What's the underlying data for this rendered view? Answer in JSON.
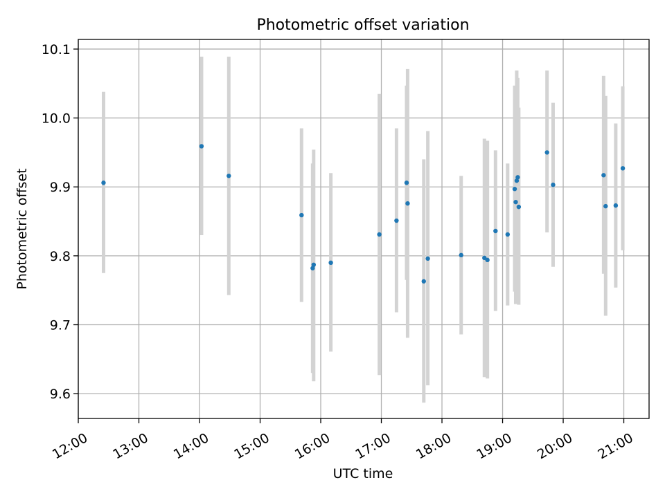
{
  "chart_data": {
    "type": "scatter",
    "title": "Photometric offset variation",
    "xlabel": "UTC time",
    "ylabel": "Photometric offset",
    "x_axis": "time",
    "xlim": [
      "12:00",
      "21:25"
    ],
    "ylim": [
      9.564,
      10.114
    ],
    "xticks": [
      "12:00",
      "13:00",
      "14:00",
      "15:00",
      "16:00",
      "17:00",
      "18:00",
      "19:00",
      "20:00",
      "21:00"
    ],
    "yticks": [
      9.6,
      9.7,
      9.8,
      9.9,
      10.0,
      10.1
    ],
    "ytick_labels": [
      "9.6",
      "9.7",
      "9.8",
      "9.9",
      "10.0",
      "10.1"
    ],
    "grid": true,
    "marker_color": "#1f77b4",
    "errorbar_color": "#d3d3d3",
    "points": [
      {
        "x": "12:25",
        "y": 9.906,
        "lo": 9.775,
        "hi": 10.038
      },
      {
        "x": "14:02",
        "y": 9.959,
        "lo": 9.83,
        "hi": 10.089
      },
      {
        "x": "14:29",
        "y": 9.916,
        "lo": 9.743,
        "hi": 10.089
      },
      {
        "x": "15:41",
        "y": 9.859,
        "lo": 9.733,
        "hi": 9.985
      },
      {
        "x": "15:52",
        "y": 9.782,
        "lo": 9.63,
        "hi": 9.934
      },
      {
        "x": "15:53",
        "y": 9.787,
        "lo": 9.618,
        "hi": 9.954
      },
      {
        "x": "16:10",
        "y": 9.79,
        "lo": 9.661,
        "hi": 9.92
      },
      {
        "x": "16:58",
        "y": 9.831,
        "lo": 9.627,
        "hi": 10.035
      },
      {
        "x": "17:15",
        "y": 9.851,
        "lo": 9.718,
        "hi": 9.985
      },
      {
        "x": "17:25",
        "y": 9.906,
        "lo": 9.765,
        "hi": 10.047
      },
      {
        "x": "17:26",
        "y": 9.876,
        "lo": 9.681,
        "hi": 10.071
      },
      {
        "x": "17:42",
        "y": 9.763,
        "lo": 9.587,
        "hi": 9.94
      },
      {
        "x": "17:46",
        "y": 9.796,
        "lo": 9.612,
        "hi": 9.981
      },
      {
        "x": "18:19",
        "y": 9.801,
        "lo": 9.686,
        "hi": 9.916
      },
      {
        "x": "18:42",
        "y": 9.797,
        "lo": 9.624,
        "hi": 9.97
      },
      {
        "x": "18:45",
        "y": 9.794,
        "lo": 9.622,
        "hi": 9.967
      },
      {
        "x": "18:53",
        "y": 9.836,
        "lo": 9.72,
        "hi": 9.953
      },
      {
        "x": "19:05",
        "y": 9.831,
        "lo": 9.728,
        "hi": 9.934
      },
      {
        "x": "19:12",
        "y": 9.897,
        "lo": 9.748,
        "hi": 10.047
      },
      {
        "x": "19:13",
        "y": 9.878,
        "lo": 9.73,
        "hi": 10.028
      },
      {
        "x": "19:14",
        "y": 9.909,
        "lo": 9.749,
        "hi": 10.069
      },
      {
        "x": "19:15",
        "y": 9.914,
        "lo": 9.75,
        "hi": 10.058
      },
      {
        "x": "19:16",
        "y": 9.871,
        "lo": 9.729,
        "hi": 10.015
      },
      {
        "x": "19:44",
        "y": 9.95,
        "lo": 9.834,
        "hi": 10.069
      },
      {
        "x": "19:50",
        "y": 9.903,
        "lo": 9.784,
        "hi": 10.022
      },
      {
        "x": "20:40",
        "y": 9.917,
        "lo": 9.774,
        "hi": 10.061
      },
      {
        "x": "20:42",
        "y": 9.872,
        "lo": 9.713,
        "hi": 10.032
      },
      {
        "x": "20:52",
        "y": 9.873,
        "lo": 9.754,
        "hi": 9.992
      },
      {
        "x": "20:59",
        "y": 9.927,
        "lo": 9.808,
        "hi": 10.046
      }
    ]
  }
}
